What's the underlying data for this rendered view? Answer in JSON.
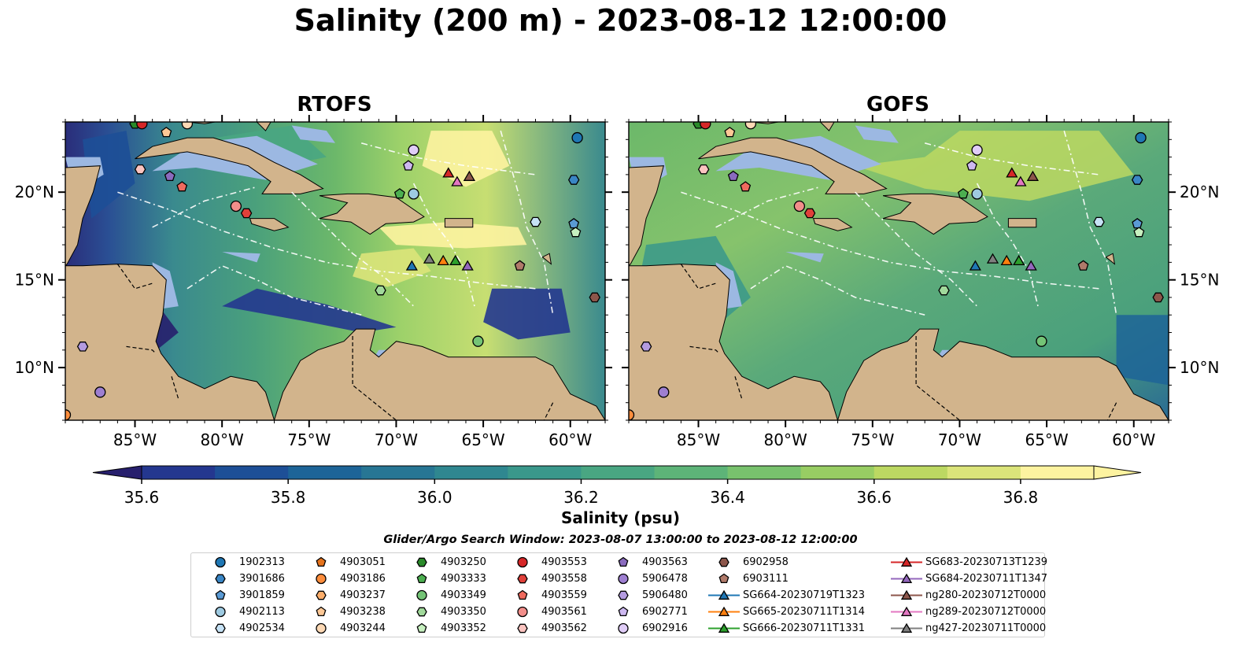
{
  "title": "Salinity (200 m) - 2023-08-12 12:00:00",
  "panels": [
    {
      "title": "RTOFS",
      "model": "rtofs"
    },
    {
      "title": "GOFS",
      "model": "gofs"
    }
  ],
  "map": {
    "lon_range": [
      -89,
      -58
    ],
    "lat_range": [
      7,
      24
    ],
    "lon_ticks": [
      {
        "lon": -85,
        "label": "85°W"
      },
      {
        "lon": -80,
        "label": "80°W"
      },
      {
        "lon": -75,
        "label": "75°W"
      },
      {
        "lon": -70,
        "label": "70°W"
      },
      {
        "lon": -65,
        "label": "65°W"
      },
      {
        "lon": -60,
        "label": "60°W"
      }
    ],
    "lat_ticks": [
      {
        "lat": 20,
        "label": "20°N"
      },
      {
        "lat": 15,
        "label": "15°N"
      },
      {
        "lat": 10,
        "label": "10°N"
      }
    ],
    "colors": {
      "land": "#d2b48c",
      "shelf": "#9cb8e2",
      "eez_lines": "#ffffff"
    }
  },
  "colorbar": {
    "label": "Salinity (psu)",
    "min": 35.6,
    "max": 36.9,
    "step": 0.1,
    "ticks": [
      "35.6",
      "35.8",
      "36.0",
      "36.2",
      "36.4",
      "36.6",
      "36.8"
    ],
    "extend": "both",
    "colors": [
      "#271f6d",
      "#24378f",
      "#1d4f97",
      "#1d6498",
      "#277694",
      "#2f8790",
      "#3a988b",
      "#49a682",
      "#5db478",
      "#78c26d",
      "#98cd63",
      "#bcd862",
      "#dbe47a",
      "#fdf3a0"
    ],
    "colormap": "haline"
  },
  "search_window": "Glider/Argo Search Window: 2023-08-07 13:00:00 to 2023-08-12 12:00:00",
  "legend": [
    {
      "label": "1902313",
      "marker": "circle",
      "color": "#1f77b4",
      "lon": -59.6,
      "lat": 23.1
    },
    {
      "label": "3901686",
      "marker": "hexagon",
      "color": "#3a86c5",
      "lon": -59.8,
      "lat": 20.7
    },
    {
      "label": "3901859",
      "marker": "pentagon",
      "color": "#5a9ad4",
      "lon": -59.8,
      "lat": 18.2
    },
    {
      "label": "4902113",
      "marker": "circle",
      "color": "#9ecae1",
      "lon": -69.0,
      "lat": 19.9
    },
    {
      "label": "4902534",
      "marker": "hexagon",
      "color": "#c6e2f5",
      "lon": -62.0,
      "lat": 18.3
    },
    {
      "label": "4903051",
      "marker": "pentagon",
      "color": "#e6731c",
      "lon": -89.0,
      "lat": 7.3
    },
    {
      "label": "4903186",
      "marker": "circle",
      "color": "#fd8d3c",
      "lon": -89.0,
      "lat": 7.3
    },
    {
      "label": "4903237",
      "marker": "hexagon",
      "color": "#fdae6b",
      "lon": -82.0,
      "lat": 23.9
    },
    {
      "label": "4903238",
      "marker": "pentagon",
      "color": "#fdc896",
      "lon": -83.2,
      "lat": 23.4
    },
    {
      "label": "4903244",
      "marker": "circle",
      "color": "#fdd9b5",
      "lon": -82.0,
      "lat": 23.9
    },
    {
      "label": "4903250",
      "marker": "hexagon",
      "color": "#2a8a2a",
      "lon": -85.0,
      "lat": 23.9
    },
    {
      "label": "4903333",
      "marker": "pentagon",
      "color": "#4caf50",
      "lon": -69.8,
      "lat": 19.9
    },
    {
      "label": "4903349",
      "marker": "circle",
      "color": "#74c476",
      "lon": -65.3,
      "lat": 11.5
    },
    {
      "label": "4903350",
      "marker": "hexagon",
      "color": "#a1d99b",
      "lon": -70.9,
      "lat": 14.4
    },
    {
      "label": "4903352",
      "marker": "pentagon",
      "color": "#c7f0c0",
      "lon": -59.7,
      "lat": 17.7
    },
    {
      "label": "4903553",
      "marker": "circle",
      "color": "#d62728",
      "lon": -84.6,
      "lat": 23.9
    },
    {
      "label": "4903558",
      "marker": "hexagon",
      "color": "#e0403a",
      "lon": -78.6,
      "lat": 18.8
    },
    {
      "label": "4903559",
      "marker": "pentagon",
      "color": "#ef6a5e",
      "lon": -82.3,
      "lat": 20.3
    },
    {
      "label": "4903561",
      "marker": "circle",
      "color": "#f28e8a",
      "lon": -79.2,
      "lat": 19.2
    },
    {
      "label": "4903562",
      "marker": "hexagon",
      "color": "#fbc4c0",
      "lon": -84.7,
      "lat": 21.3
    },
    {
      "label": "4903563",
      "marker": "pentagon",
      "color": "#8a6bbe",
      "lon": -83.0,
      "lat": 20.9
    },
    {
      "label": "5906478",
      "marker": "circle",
      "color": "#9e7fd1",
      "lon": -87.0,
      "lat": 8.6
    },
    {
      "label": "5906480",
      "marker": "hexagon",
      "color": "#b49be0",
      "lon": -88.0,
      "lat": 11.2
    },
    {
      "label": "6902771",
      "marker": "pentagon",
      "color": "#cdb8f0",
      "lon": -69.3,
      "lat": 21.5
    },
    {
      "label": "6902916",
      "marker": "circle",
      "color": "#e0cdf7",
      "lon": -69.0,
      "lat": 22.4
    },
    {
      "label": "6902958",
      "marker": "hexagon",
      "color": "#8c564b",
      "lon": -58.6,
      "lat": 14.0
    },
    {
      "label": "6903111",
      "marker": "pentagon",
      "color": "#b07a6a",
      "lon": -62.9,
      "lat": 15.8
    },
    {
      "label": "SG664-20230719T1323",
      "marker": "triangle",
      "color": "#1f77b4",
      "line": true,
      "lon": -69.1,
      "lat": 15.8
    },
    {
      "label": "SG665-20230711T1314",
      "marker": "triangle",
      "color": "#ff7f0e",
      "line": true,
      "lon": -67.3,
      "lat": 16.1
    },
    {
      "label": "SG666-20230711T1331",
      "marker": "triangle",
      "color": "#2ca02c",
      "line": true,
      "lon": -66.6,
      "lat": 16.1
    },
    {
      "label": "SG683-20230713T1239",
      "marker": "triangle",
      "color": "#d62728",
      "line": true,
      "lon": -67.0,
      "lat": 21.1
    },
    {
      "label": "SG684-20230711T1347",
      "marker": "triangle",
      "color": "#9467bd",
      "line": true,
      "lon": -65.9,
      "lat": 15.8
    },
    {
      "label": "ng280-20230712T0000",
      "marker": "triangle",
      "color": "#8c564b",
      "line": true,
      "lon": -65.8,
      "lat": 20.9
    },
    {
      "label": "ng289-20230712T0000",
      "marker": "triangle",
      "color": "#e377c2",
      "line": true,
      "lon": -66.5,
      "lat": 20.6
    },
    {
      "label": "ng427-20230711T0000",
      "marker": "triangle",
      "color": "#7f7f7f",
      "line": true,
      "lon": -68.1,
      "lat": 16.2
    }
  ]
}
